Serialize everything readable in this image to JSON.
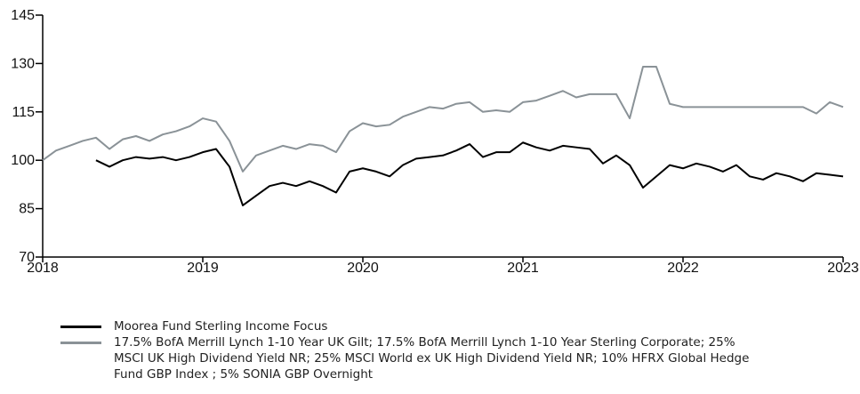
{
  "chart_data": {
    "type": "line",
    "x": [
      2018,
      2018.083,
      2018.167,
      2018.25,
      2018.333,
      2018.417,
      2018.5,
      2018.583,
      2018.667,
      2018.75,
      2018.833,
      2018.917,
      2019,
      2019.083,
      2019.167,
      2019.25,
      2019.333,
      2019.417,
      2019.5,
      2019.583,
      2019.667,
      2019.75,
      2019.833,
      2019.917,
      2020,
      2020.083,
      2020.167,
      2020.25,
      2020.333,
      2020.417,
      2020.5,
      2020.583,
      2020.667,
      2020.75,
      2020.833,
      2020.917,
      2021,
      2021.083,
      2021.167,
      2021.25,
      2021.333,
      2021.417,
      2021.5,
      2021.583,
      2021.667,
      2021.75,
      2021.833,
      2021.917,
      2022,
      2022.083,
      2022.167,
      2022.25,
      2022.333,
      2022.417,
      2022.5,
      2022.583,
      2022.667,
      2022.75,
      2022.833,
      2022.917,
      2023
    ],
    "series": [
      {
        "name": "Moorea Fund Sterling Income Focus",
        "color": "#000000",
        "values": [
          null,
          null,
          null,
          null,
          100,
          98,
          100,
          101,
          100.5,
          101,
          100,
          101,
          102.5,
          103.5,
          98,
          86,
          89,
          92,
          93,
          92,
          93.5,
          92,
          90,
          96.5,
          97.5,
          96.5,
          95,
          98.5,
          100.5,
          101,
          101.5,
          103,
          105,
          101,
          102.5,
          102.5,
          105.5,
          104,
          103,
          104.5,
          104,
          103.5,
          99,
          101.5,
          98.5,
          91.5,
          95,
          98.5,
          97.5,
          99,
          98,
          96.5,
          98.5,
          95,
          94,
          96,
          95,
          93.5,
          96,
          95.5,
          95
        ]
      },
      {
        "name": "17.5% BofA Merrill Lynch 1-10 Year UK Gilt; 17.5% BofA Merrill Lynch 1-10 Year Sterling Corporate; 25% MSCI UK High Dividend Yield NR; 25% MSCI World ex UK High Dividend Yield NR; 10% HFRX Global Hedge Fund GBP Index ; 5% SONIA GBP Overnight",
        "color": "#8a9297",
        "values": [
          100,
          103,
          104.5,
          106,
          107,
          103.5,
          106.5,
          107.5,
          106,
          108,
          109,
          110.5,
          113,
          112,
          106,
          96.5,
          101.5,
          103,
          104.5,
          103.5,
          105,
          104.5,
          102.5,
          109,
          111.5,
          110.5,
          111,
          113.5,
          115,
          116.5,
          116,
          117.5,
          118,
          115,
          115.5,
          115,
          118,
          118.5,
          120,
          121.5,
          119.5,
          120.5,
          120.5,
          120.5,
          113,
          129,
          129,
          117.5,
          116.5,
          116.5,
          116.5,
          116.5,
          116.5,
          116.5,
          116.5,
          116.5,
          116.5,
          116.5,
          114.5,
          118,
          116.5
        ]
      }
    ],
    "xlim": [
      2018,
      2023
    ],
    "xticks": [
      2018,
      2019,
      2020,
      2021,
      2022,
      2023
    ],
    "ylim": [
      70,
      145
    ],
    "yticks": [
      70,
      85,
      100,
      115,
      130,
      145
    ]
  }
}
